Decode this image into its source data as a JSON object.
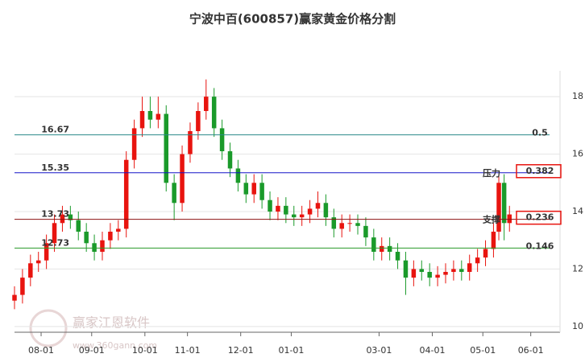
{
  "chart_data": {
    "type": "candlestick",
    "title": "宁波中百(600857)赢家黄金价格分割",
    "watermark": "赢家江恩软件",
    "watermark_url": "www.360gann.com",
    "up_color": "#e8140f",
    "down_color": "#1a9a2a",
    "grid": true,
    "ylim": [
      9.8,
      18.9
    ],
    "yticks": [
      10,
      12,
      14,
      16,
      18
    ],
    "xlim": [
      0,
      205
    ],
    "xticks": [
      {
        "value": 10,
        "label": "08-01"
      },
      {
        "value": 29,
        "label": "09-01"
      },
      {
        "value": 49,
        "label": "10-01"
      },
      {
        "value": 65,
        "label": "11-01"
      },
      {
        "value": 85,
        "label": "12-01"
      },
      {
        "value": 104,
        "label": "01-01"
      },
      {
        "value": 137,
        "label": "03-01"
      },
      {
        "value": 157,
        "label": "04-01"
      },
      {
        "value": 176,
        "label": "05-01"
      },
      {
        "value": 194,
        "label": "06-01"
      }
    ],
    "x": [
      0,
      3,
      6,
      9,
      12,
      15,
      18,
      21,
      24,
      27,
      30,
      33,
      36,
      39,
      42,
      45,
      48,
      51,
      54,
      57,
      60,
      63,
      66,
      69,
      72,
      75,
      78,
      81,
      84,
      87,
      90,
      93,
      96,
      99,
      102,
      105,
      108,
      111,
      114,
      117,
      120,
      123,
      126,
      129,
      132,
      135,
      138,
      141,
      144,
      147,
      150,
      153,
      156,
      159,
      162,
      165,
      168,
      171,
      174,
      177,
      180,
      182,
      184,
      186
    ],
    "open": [
      10.9,
      11.1,
      11.7,
      12.2,
      12.3,
      12.9,
      13.6,
      13.9,
      13.7,
      13.3,
      12.9,
      12.6,
      13.0,
      13.3,
      13.4,
      15.8,
      16.9,
      17.5,
      17.2,
      17.4,
      15.0,
      14.3,
      16.0,
      16.8,
      17.5,
      18.0,
      16.9,
      16.1,
      15.5,
      15.0,
      14.6,
      15.0,
      14.4,
      14.0,
      14.2,
      13.9,
      13.8,
      13.9,
      14.1,
      14.3,
      13.8,
      13.4,
      13.6,
      13.6,
      13.5,
      13.1,
      12.6,
      12.8,
      12.6,
      12.3,
      11.7,
      12.0,
      11.9,
      11.7,
      11.8,
      11.9,
      12.0,
      11.9,
      12.2,
      12.4,
      12.7,
      13.3,
      15.0,
      13.6
    ],
    "high": [
      11.4,
      12.0,
      12.5,
      12.6,
      13.2,
      13.9,
      14.2,
      14.2,
      14.0,
      13.6,
      13.2,
      13.3,
      13.6,
      13.7,
      16.1,
      17.2,
      18.0,
      18.0,
      18.0,
      17.7,
      15.3,
      16.3,
      17.1,
      17.8,
      18.6,
      18.3,
      17.2,
      16.4,
      15.8,
      15.3,
      15.3,
      15.3,
      14.7,
      14.5,
      14.5,
      14.2,
      14.2,
      14.4,
      14.7,
      14.6,
      14.1,
      13.9,
      13.9,
      13.9,
      13.8,
      13.4,
      13.1,
      13.1,
      12.9,
      12.6,
      12.3,
      12.3,
      12.2,
      12.1,
      12.2,
      12.3,
      12.3,
      12.5,
      12.7,
      13.0,
      13.6,
      15.3,
      15.3,
      14.2
    ],
    "low": [
      10.6,
      10.8,
      11.4,
      11.9,
      12.0,
      12.6,
      13.3,
      13.4,
      13.0,
      12.6,
      12.3,
      12.3,
      12.7,
      13.0,
      13.1,
      15.5,
      16.6,
      16.9,
      16.9,
      14.7,
      13.7,
      14.0,
      15.7,
      16.5,
      17.2,
      16.6,
      15.8,
      15.2,
      14.7,
      14.3,
      14.3,
      14.1,
      13.7,
      13.7,
      13.6,
      13.5,
      13.5,
      13.6,
      13.8,
      13.5,
      13.1,
      13.1,
      13.3,
      13.2,
      12.8,
      12.3,
      12.3,
      12.3,
      12.0,
      11.1,
      11.4,
      11.6,
      11.4,
      11.4,
      11.5,
      11.6,
      11.6,
      11.6,
      11.9,
      12.1,
      12.4,
      13.0,
      13.0,
      13.3
    ],
    "close": [
      11.1,
      11.7,
      12.2,
      12.3,
      12.9,
      13.6,
      13.9,
      13.7,
      13.3,
      12.9,
      12.6,
      13.0,
      13.3,
      13.4,
      15.8,
      16.9,
      17.5,
      17.2,
      17.4,
      15.0,
      14.3,
      16.0,
      16.8,
      17.5,
      18.0,
      16.9,
      16.1,
      15.5,
      15.0,
      14.6,
      15.0,
      14.4,
      14.0,
      14.2,
      13.9,
      13.8,
      13.9,
      14.1,
      14.3,
      13.8,
      13.4,
      13.6,
      13.6,
      13.5,
      13.1,
      12.6,
      12.8,
      12.6,
      12.3,
      11.7,
      12.0,
      11.9,
      11.7,
      11.8,
      11.9,
      12.0,
      11.9,
      12.2,
      12.4,
      12.7,
      13.3,
      15.0,
      13.6,
      13.9
    ],
    "levels": [
      {
        "value": 16.67,
        "ratio": 0.5,
        "color": "#2a8a8a",
        "boxed": false
      },
      {
        "value": 15.35,
        "ratio": 0.382,
        "color": "#1515c8",
        "note": "压力",
        "boxed": true
      },
      {
        "value": 13.73,
        "ratio": 0.236,
        "color": "#8b1010",
        "note": "支撑",
        "boxed": true
      },
      {
        "value": 12.73,
        "ratio": 0.146,
        "color": "#2a9a2a",
        "boxed": false
      }
    ]
  }
}
